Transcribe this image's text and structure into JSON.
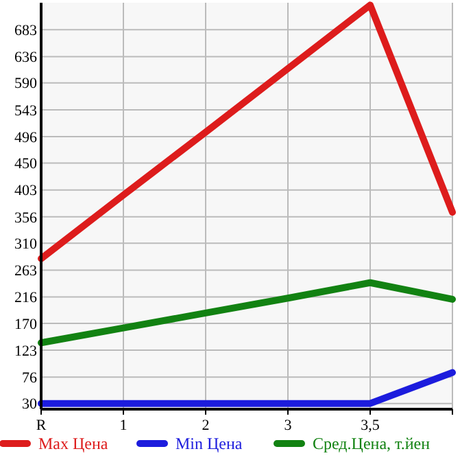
{
  "chart_data": {
    "type": "line",
    "categories": [
      "R",
      "1",
      "2",
      "3",
      "3,5",
      null
    ],
    "series": [
      {
        "name": "Max Цена",
        "color": "#dd1c1c",
        "values": [
          283,
          394,
          504,
          615,
          726,
          364
        ]
      },
      {
        "name": "Min Цена",
        "color": "#1c1cdd",
        "values": [
          30,
          30,
          30,
          30,
          30,
          84
        ]
      },
      {
        "name": "Сред.Цена, т.йен",
        "color": "#128212",
        "values": [
          136,
          162,
          188,
          214,
          241,
          212
        ]
      }
    ],
    "ylim": [
      20,
      730
    ],
    "yticks": [
      30,
      76,
      123,
      170,
      216,
      263,
      310,
      356,
      403,
      450,
      496,
      543,
      590,
      636,
      683
    ],
    "grid": true,
    "legend": "bottom",
    "marker": "none",
    "line_style": "solid"
  }
}
